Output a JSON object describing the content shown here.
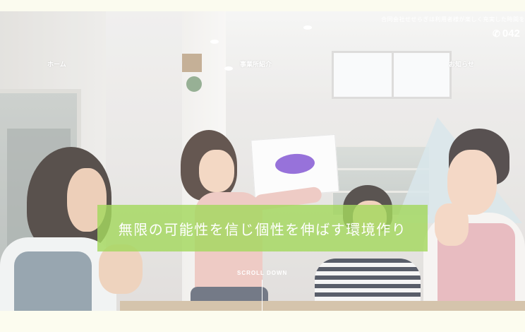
{
  "header": {
    "tagline": "合同会社せせらぎは利用者様が楽しく充実した時間を",
    "phone": "042",
    "phone_icon": "phone-icon"
  },
  "nav": {
    "items": [
      {
        "label": "ホーム"
      },
      {
        "label": "事業所紹介"
      },
      {
        "label": "お知らせ"
      }
    ]
  },
  "hero": {
    "banner_text": "無限の可能性を信じ個性を伸ばす環境作り",
    "banner_color": "#a4d85e",
    "scroll_label": "SCROLL DOWN"
  }
}
